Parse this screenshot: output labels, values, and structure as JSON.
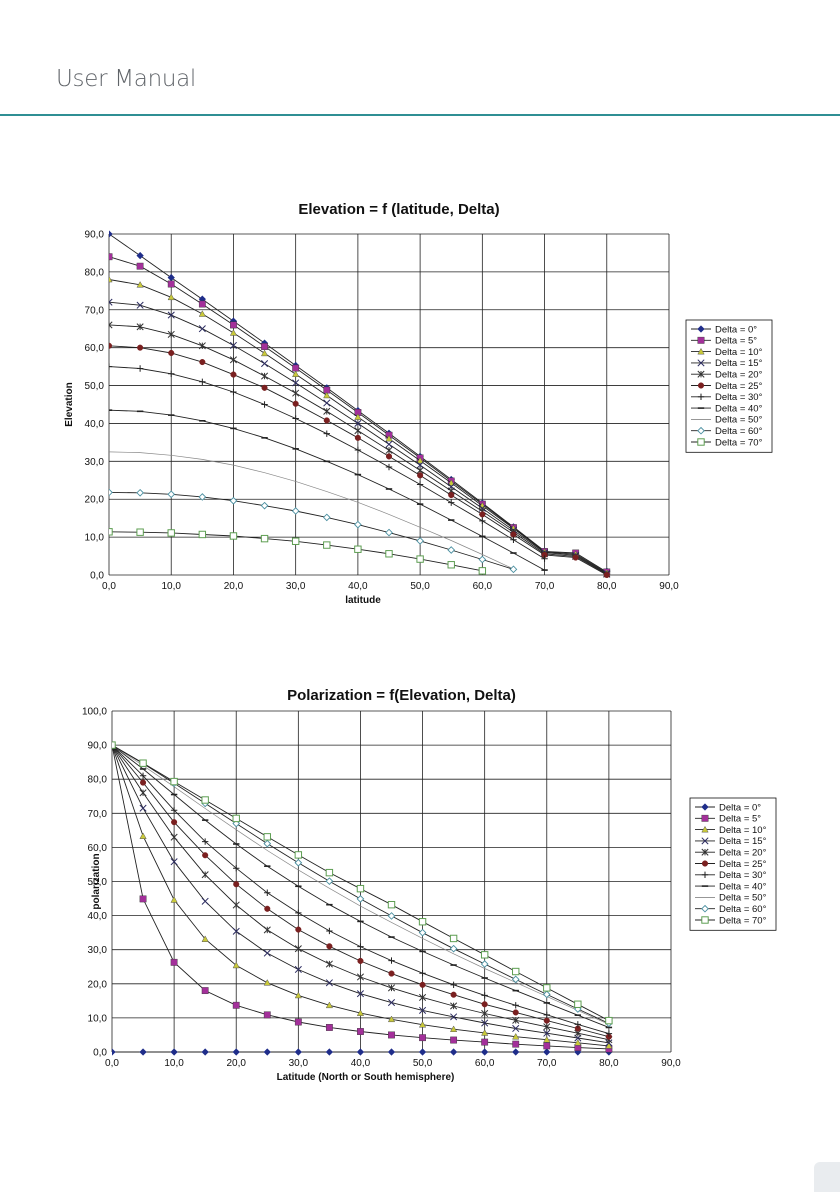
{
  "header": {
    "title": "User Manual"
  },
  "chart_data": [
    {
      "type": "line",
      "title": "Elevation = f (latitude, Delta)",
      "xlabel": "latitude",
      "ylabel": "Elevation",
      "xlim": [
        0,
        90
      ],
      "ylim": [
        0,
        90
      ],
      "x_ticks": [
        "0,0",
        "10,0",
        "20,0",
        "30,0",
        "40,0",
        "50,0",
        "60,0",
        "70,0",
        "80,0",
        "90,0"
      ],
      "y_ticks": [
        "0,0",
        "10,0",
        "20,0",
        "30,0",
        "40,0",
        "50,0",
        "60,0",
        "70,0",
        "80,0",
        "90,0"
      ],
      "grid": true,
      "legend_position": "right",
      "x": [
        0,
        5,
        10,
        15,
        20,
        25,
        30,
        35,
        40,
        45,
        50,
        55,
        60,
        65,
        70,
        75,
        80
      ],
      "series": [
        {
          "name": "Delta = 0°",
          "marker": "diamond",
          "color": "#1f2d8a",
          "values": [
            90,
            84.3,
            78.5,
            72.8,
            67,
            61.2,
            55.3,
            49.4,
            43.4,
            37.4,
            31.3,
            25.2,
            19,
            12.7,
            6.3,
            null,
            1
          ]
        },
        {
          "name": "Delta = 5°",
          "marker": "square",
          "color": "#a3309a",
          "values": [
            84,
            81.5,
            76.8,
            71.5,
            66,
            60.3,
            54.6,
            48.8,
            42.9,
            36.9,
            30.9,
            24.8,
            18.7,
            12.5,
            6.2,
            5.8,
            0.8
          ]
        },
        {
          "name": "Delta = 10°",
          "marker": "triangle",
          "color": "#c9c93a",
          "values": [
            78,
            76.6,
            73.3,
            68.9,
            63.9,
            58.5,
            53,
            47.4,
            41.7,
            36,
            30.2,
            24.3,
            18.3,
            12.3,
            6.1,
            5.5,
            0.6
          ]
        },
        {
          "name": "Delta = 15°",
          "marker": "x",
          "color": "#2b2b60",
          "values": [
            72,
            71.2,
            68.6,
            65,
            60.6,
            55.8,
            50.7,
            45.4,
            40,
            34.5,
            29,
            23.3,
            17.6,
            11.8,
            5.9,
            5.2,
            0.4
          ]
        },
        {
          "name": "Delta = 20°",
          "marker": "asterisk",
          "color": "#333333",
          "values": [
            66,
            65.5,
            63.5,
            60.5,
            56.8,
            52.5,
            48,
            43.2,
            38.1,
            32.9,
            27.6,
            22.2,
            16.8,
            11.3,
            5.6,
            4.9,
            0.2
          ]
        },
        {
          "name": "Delta = 25°",
          "marker": "circle",
          "color": "#7a2020",
          "values": [
            60.5,
            60,
            58.6,
            56.2,
            52.9,
            49.4,
            45.2,
            40.8,
            36.2,
            31.3,
            26.3,
            21.1,
            16,
            10.7,
            5.3,
            4.6,
            0
          ]
        },
        {
          "name": "Delta = 30°",
          "marker": "plus",
          "color": "#222222",
          "values": [
            55,
            54.5,
            53.1,
            51,
            48.3,
            45,
            41.3,
            37.3,
            33,
            28.5,
            23.9,
            19.1,
            14.3,
            9.3,
            4.3,
            null,
            null
          ]
        },
        {
          "name": "Delta = 40°",
          "marker": "dash",
          "color": "#222222",
          "values": [
            43.5,
            43.2,
            42.2,
            40.7,
            38.7,
            36.2,
            33.3,
            30,
            26.5,
            22.7,
            18.7,
            14.5,
            10.2,
            5.8,
            1.3,
            null,
            null
          ]
        },
        {
          "name": "Delta = 50°",
          "marker": "none",
          "color": "#222222",
          "values": [
            32.5,
            32.3,
            31.6,
            30.5,
            29,
            27,
            24.7,
            22,
            19.2,
            16,
            12.6,
            9.1,
            5.4,
            1.6,
            null,
            null,
            null
          ]
        },
        {
          "name": "Delta = 60°",
          "marker": "diamond-open",
          "color": "#4a8fa0",
          "values": [
            21.8,
            21.7,
            21.3,
            20.6,
            19.6,
            18.3,
            16.9,
            15.2,
            13.3,
            11.2,
            9,
            6.6,
            4.1,
            1.5,
            null,
            null,
            null
          ]
        },
        {
          "name": "Delta = 70°",
          "marker": "square-open",
          "color": "#5e9e52",
          "values": [
            11.4,
            11.3,
            11.1,
            10.7,
            10.3,
            9.6,
            8.9,
            7.9,
            6.8,
            5.6,
            4.2,
            2.7,
            1.1,
            null,
            null,
            null,
            null
          ]
        }
      ]
    },
    {
      "type": "line",
      "title": "Polarization = f(Elevation, Delta)",
      "xlabel": "Latitude (North or South hemisphere)",
      "ylabel": "polarization",
      "xlim": [
        0,
        90
      ],
      "ylim": [
        0,
        100
      ],
      "x_ticks": [
        "0,0",
        "10,0",
        "20,0",
        "30,0",
        "40,0",
        "50,0",
        "60,0",
        "70,0",
        "80,0",
        "90,0"
      ],
      "y_ticks": [
        "0,0",
        "10,0",
        "20,0",
        "30,0",
        "40,0",
        "50,0",
        "60,0",
        "70,0",
        "80,0",
        "90,0",
        "100,0"
      ],
      "grid": true,
      "legend_position": "right",
      "x": [
        0,
        5,
        10,
        15,
        20,
        25,
        30,
        35,
        40,
        45,
        50,
        55,
        60,
        65,
        70,
        75,
        80
      ],
      "series": [
        {
          "name": "Delta = 0°",
          "marker": "diamond",
          "color": "#1f2d8a",
          "values": [
            0,
            0,
            0,
            0,
            0,
            0,
            0,
            0,
            0,
            0,
            0,
            0,
            0,
            0,
            0,
            0,
            0
          ]
        },
        {
          "name": "Delta = 5°",
          "marker": "square",
          "color": "#a3309a",
          "values": [
            90,
            44.9,
            26.3,
            18,
            13.7,
            10.9,
            8.8,
            7.2,
            6,
            5,
            4.2,
            3.5,
            2.9,
            2.3,
            1.8,
            1.3,
            0.9
          ]
        },
        {
          "name": "Delta = 10°",
          "marker": "triangle",
          "color": "#c9c93a",
          "values": [
            90,
            63.3,
            44.6,
            33.1,
            25.4,
            20.3,
            16.6,
            13.7,
            11.4,
            9.6,
            8,
            6.7,
            5.6,
            4.5,
            3.6,
            2.7,
            1.8
          ]
        },
        {
          "name": "Delta = 15°",
          "marker": "x",
          "color": "#2b2b60",
          "values": [
            90,
            71.5,
            55.8,
            44.2,
            35.4,
            29,
            24.2,
            20.3,
            17.1,
            14.5,
            12.2,
            10.3,
            8.5,
            6.9,
            5.5,
            4.1,
            2.7
          ]
        },
        {
          "name": "Delta = 20°",
          "marker": "asterisk",
          "color": "#333333",
          "values": [
            90,
            76,
            63,
            52,
            43.1,
            35.8,
            30.3,
            25.8,
            22,
            18.8,
            16,
            13.5,
            11.3,
            9.3,
            7.4,
            5.5,
            3.6
          ]
        },
        {
          "name": "Delta = 25°",
          "marker": "circle",
          "color": "#7a2020",
          "values": [
            90,
            79,
            67.4,
            57.7,
            49.2,
            42,
            35.9,
            31,
            26.7,
            23,
            19.7,
            16.8,
            14,
            11.6,
            9.2,
            6.9,
            4.5
          ]
        },
        {
          "name": "Delta = 30°",
          "marker": "plus",
          "color": "#222222",
          "values": [
            90,
            81,
            70.9,
            61.7,
            53.9,
            46.7,
            40.8,
            35.5,
            30.9,
            26.8,
            23.1,
            19.7,
            16.6,
            13.7,
            10.9,
            8.1,
            5.4
          ]
        },
        {
          "name": "Delta = 40°",
          "marker": "dash",
          "color": "#222222",
          "values": [
            90,
            83,
            75.5,
            68,
            61,
            54.5,
            48.6,
            43.2,
            38.3,
            33.7,
            29.5,
            25.5,
            21.7,
            18,
            14.4,
            10.8,
            7.2
          ]
        },
        {
          "name": "Delta = 50°",
          "marker": "none",
          "color": "#222222",
          "values": [
            90,
            84,
            77.8,
            71.4,
            65.2,
            59.1,
            53.4,
            48,
            42.8,
            38,
            33.3,
            28.8,
            24.5,
            20.4,
            16.3,
            12.2,
            8.1
          ]
        },
        {
          "name": "Delta = 60°",
          "marker": "diamond-open",
          "color": "#4a8fa0",
          "values": [
            90,
            84.6,
            78.8,
            72.9,
            67,
            61.1,
            55.5,
            50.1,
            44.9,
            39.9,
            35,
            30.3,
            25.8,
            21.3,
            16.9,
            12.6,
            8.4
          ]
        },
        {
          "name": "Delta = 70°",
          "marker": "square-open",
          "color": "#5e9e52",
          "values": [
            90,
            84.7,
            79.3,
            73.9,
            68.5,
            63.1,
            57.8,
            52.6,
            47.9,
            43.2,
            38.2,
            33.3,
            28.5,
            23.6,
            18.8,
            14,
            9.2
          ]
        }
      ]
    }
  ]
}
